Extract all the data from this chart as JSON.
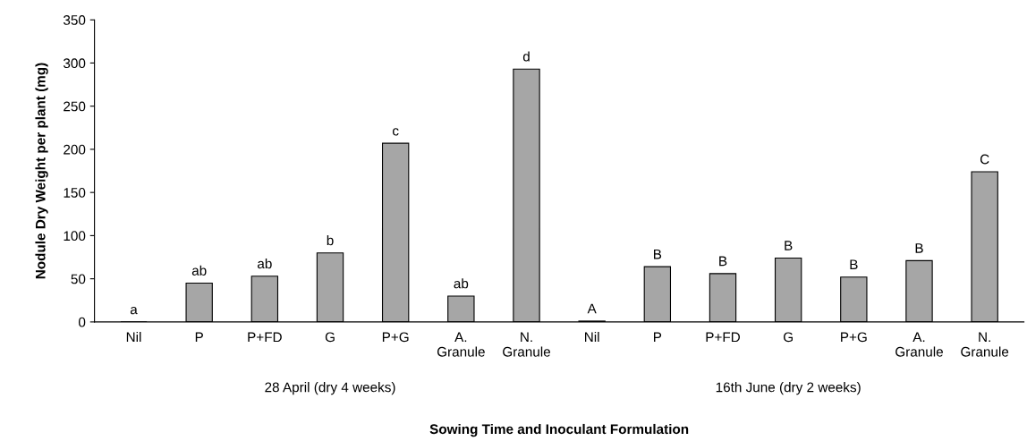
{
  "chart_data": {
    "type": "bar",
    "categories": [
      "Nil",
      "P",
      "P+FD",
      "G",
      "P+G",
      "A.\nGranule",
      "N.\nGranule",
      "Nil",
      "P",
      "P+FD",
      "G",
      "P+G",
      "A.\nGranule",
      "N.\nGranule"
    ],
    "values": [
      0,
      45,
      53,
      80,
      207,
      30,
      293,
      1,
      64,
      56,
      74,
      52,
      71,
      174
    ],
    "value_labels": [
      "a",
      "ab",
      "ab",
      "b",
      "c",
      "ab",
      "d",
      "A",
      "B",
      "B",
      "B",
      "B",
      "B",
      "C"
    ],
    "color": "#a6a6a6",
    "ylim": [
      0,
      350
    ],
    "yticks": [
      0,
      50,
      100,
      150,
      200,
      250,
      300,
      350
    ],
    "xlabel": "Sowing Time and Inoculant Formulation",
    "ylabel": "Nodule Dry Weight per plant (mg)",
    "annotations": [
      "28 April (dry 4 weeks)",
      "16th June (dry 2 weeks)"
    ],
    "grid": false
  }
}
